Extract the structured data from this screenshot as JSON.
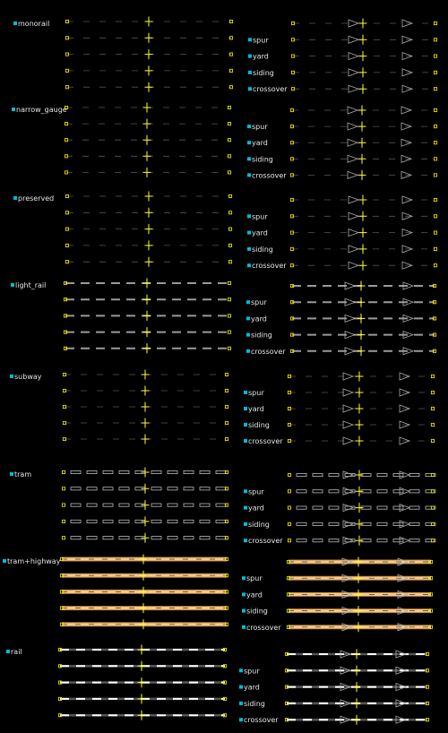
{
  "legend": {
    "groups": [
      {
        "name": "monorail",
        "style": "thin",
        "rows": [
          "spur",
          "yard",
          "siding",
          "crossover"
        ]
      },
      {
        "name": "narrow_gauge",
        "style": "thin",
        "rows": [
          "spur",
          "yard",
          "siding",
          "crossover"
        ]
      },
      {
        "name": "preserved",
        "style": "thin",
        "rows": [
          "spur",
          "yard",
          "siding",
          "crossover"
        ]
      },
      {
        "name": "light_rail",
        "style": "dashed-gray",
        "rows": [
          "spur",
          "yard",
          "siding",
          "crossover"
        ]
      },
      {
        "name": "subway",
        "style": "thin",
        "rows": [
          "spur",
          "yard",
          "siding",
          "crossover"
        ]
      },
      {
        "name": "tram",
        "style": "boxes",
        "rows": [
          "spur",
          "yard",
          "siding",
          "crossover"
        ]
      },
      {
        "name": "tram+highway",
        "style": "highway",
        "rows": [
          "spur",
          "yard",
          "siding",
          "crossover"
        ]
      },
      {
        "name": "rail",
        "style": "rail",
        "rows": [
          "spur",
          "yard",
          "siding",
          "crossover"
        ]
      }
    ]
  },
  "colors": {
    "background": "#000000",
    "marker": "#00bcd4",
    "label": "#e6e6e6",
    "endpoint": "#e8e000",
    "cross": "#ffff33",
    "thin_line": "#555555",
    "gray_dash": "#9a9a9a",
    "highway_fill": "#f5c88a",
    "highway_casing": "#b07a30",
    "rail_dash": "#ffffff",
    "arrow": "#aaaaaa"
  }
}
